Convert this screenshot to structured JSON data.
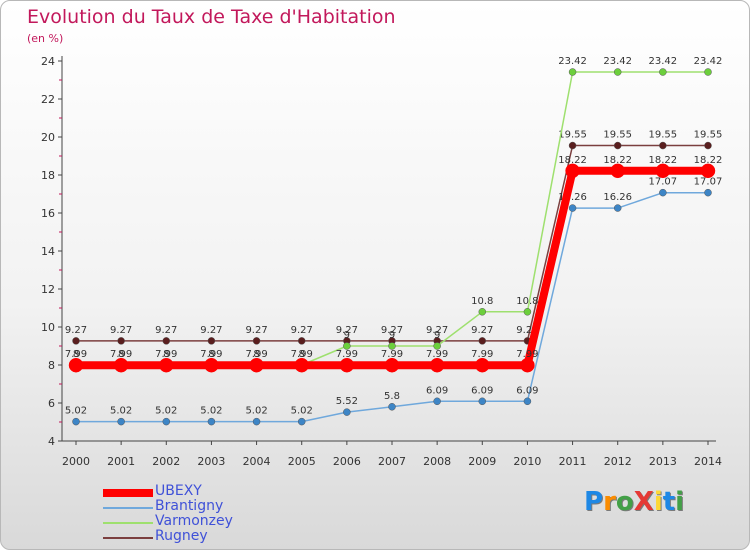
{
  "header": {
    "title": "Evolution du Taux de Taxe d'Habitation",
    "unit": "(en %)"
  },
  "logo": {
    "text": "ProXiti",
    "colors": [
      "#1e88e5",
      "#fb8c00",
      "#43a047",
      "#e53935",
      "#fdd835",
      "#1e88e5",
      "#43a047"
    ]
  },
  "chart_data": {
    "type": "line",
    "x": [
      "2000",
      "2001",
      "2002",
      "2003",
      "2004",
      "2005",
      "2006",
      "2007",
      "2008",
      "2009",
      "2010",
      "2011",
      "2012",
      "2013",
      "2014"
    ],
    "ylim": [
      4,
      24
    ],
    "yticks": [
      4,
      6,
      8,
      10,
      12,
      14,
      16,
      18,
      20,
      22,
      24
    ],
    "grid": false,
    "legend_position": "bottom-left",
    "series": [
      {
        "name": "Rugney",
        "color": "#7b3f3f",
        "point_color": "#5a1e1e",
        "values": [
          9.27,
          9.27,
          9.27,
          9.27,
          9.27,
          9.27,
          9.27,
          9.27,
          9.27,
          9.27,
          9.27,
          19.55,
          19.55,
          19.55,
          19.55
        ],
        "labels": [
          "9.27",
          "9.27",
          "9.27",
          "9.27",
          "9.27",
          "9.27",
          "9.27",
          "9.27",
          "9.27",
          "9.27",
          "9.27",
          "19.55",
          "19.55",
          "19.55",
          "19.55"
        ]
      },
      {
        "name": "Brantigny",
        "color": "#6fa8dc",
        "point_color": "#3d85c6",
        "values": [
          5.02,
          5.02,
          5.02,
          5.02,
          5.02,
          5.02,
          5.52,
          5.8,
          6.09,
          6.09,
          6.09,
          16.26,
          16.26,
          17.07,
          17.07
        ],
        "labels": [
          "5.02",
          "5.02",
          "5.02",
          "5.02",
          "5.02",
          "5.02",
          "5.52",
          "5.8",
          "6.09",
          "6.09",
          "6.09",
          "16.26",
          "16.26",
          "17.07",
          "17.07"
        ]
      },
      {
        "name": "Varmonzey",
        "color": "#9ee06e",
        "point_color": "#6ccf3c",
        "values": [
          8,
          8,
          8,
          8,
          8,
          8,
          9,
          9,
          9,
          10.8,
          10.8,
          23.42,
          23.42,
          23.42,
          23.42
        ],
        "labels": [
          "8",
          "8",
          "8",
          "8",
          "8",
          "8",
          "9",
          "9",
          "9",
          "10.8",
          "10.8",
          "23.42",
          "23.42",
          "23.42",
          "23.42"
        ]
      },
      {
        "name": "UBEXY",
        "color": "#ff0000",
        "point_color": "#ff0000",
        "values": [
          7.99,
          7.99,
          7.99,
          7.99,
          7.99,
          7.99,
          7.99,
          7.99,
          7.99,
          7.99,
          7.99,
          18.22,
          18.22,
          18.22,
          18.22
        ],
        "labels": [
          "7.99",
          "7.99",
          "7.99",
          "7.99",
          "7.99",
          "7.99",
          "7.99",
          "7.99",
          "7.99",
          "7.99",
          "7.99",
          "18.22",
          "18.22",
          "18.22",
          "18.22"
        ]
      }
    ],
    "legend_order": [
      "UBEXY",
      "Brantigny",
      "Varmonzey",
      "Rugney"
    ]
  }
}
